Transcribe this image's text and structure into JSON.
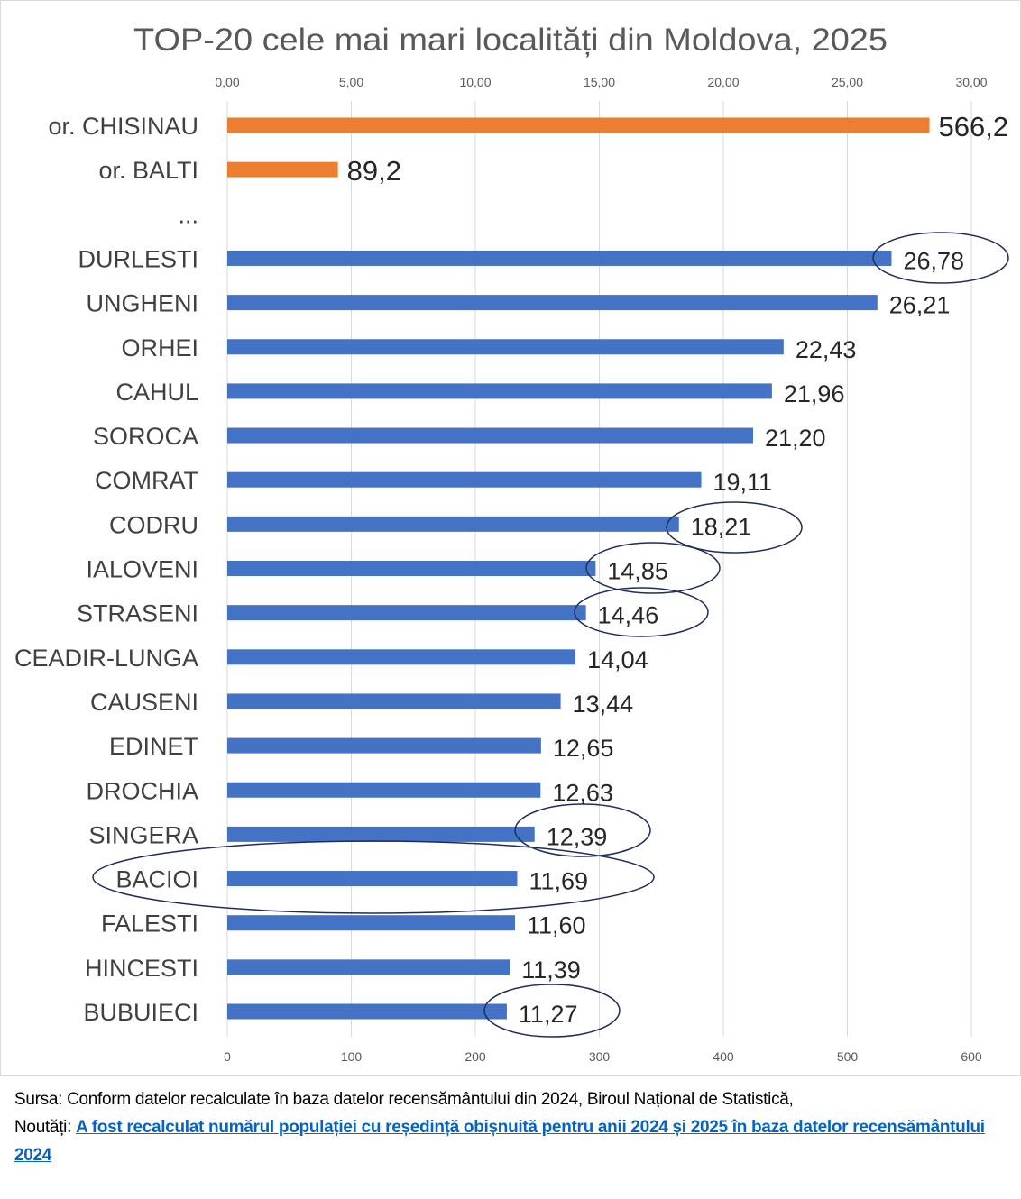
{
  "chart_data": {
    "type": "bar",
    "orientation": "horizontal",
    "title": "TOP-20 cele mai mari localități din Moldova, 2025",
    "top_axis": {
      "ticks": [
        "0,00",
        "5,00",
        "10,00",
        "15,00",
        "20,00",
        "25,00",
        "30,00"
      ],
      "range": [
        0,
        30
      ]
    },
    "bottom_axis": {
      "ticks": [
        "0",
        "100",
        "200",
        "300",
        "400",
        "500",
        "600"
      ],
      "range": [
        0,
        600
      ]
    },
    "grid": true,
    "colors": {
      "primary_axis_bars": "#4472c4",
      "secondary_axis_bars": "#ed7d31",
      "highlight_ellipse": "#1f2d5a"
    },
    "rows": [
      {
        "label": "or. CHISINAU",
        "value": 566.2,
        "value_label": "566,2",
        "axis": "bottom",
        "highlighted": false
      },
      {
        "label": "or. BALTI",
        "value": 89.2,
        "value_label": "89,2",
        "axis": "bottom",
        "highlighted": false
      },
      {
        "label": "...",
        "value": null,
        "value_label": null,
        "axis": "top",
        "highlighted": false
      },
      {
        "label": "DURLESTI",
        "value": 26.78,
        "value_label": "26,78",
        "axis": "top",
        "highlighted": true
      },
      {
        "label": "UNGHENI",
        "value": 26.21,
        "value_label": "26,21",
        "axis": "top",
        "highlighted": false
      },
      {
        "label": "ORHEI",
        "value": 22.43,
        "value_label": "22,43",
        "axis": "top",
        "highlighted": false
      },
      {
        "label": "CAHUL",
        "value": 21.96,
        "value_label": "21,96",
        "axis": "top",
        "highlighted": false
      },
      {
        "label": "SOROCA",
        "value": 21.2,
        "value_label": "21,20",
        "axis": "top",
        "highlighted": false
      },
      {
        "label": "COMRAT",
        "value": 19.11,
        "value_label": "19,11",
        "axis": "top",
        "highlighted": false
      },
      {
        "label": "CODRU",
        "value": 18.21,
        "value_label": "18,21",
        "axis": "top",
        "highlighted": true
      },
      {
        "label": "IALOVENI",
        "value": 14.85,
        "value_label": "14,85",
        "axis": "top",
        "highlighted": true
      },
      {
        "label": "STRASENI",
        "value": 14.46,
        "value_label": "14,46",
        "axis": "top",
        "highlighted": true
      },
      {
        "label": "CEADIR-LUNGA",
        "value": 14.04,
        "value_label": "14,04",
        "axis": "top",
        "highlighted": false
      },
      {
        "label": "CAUSENI",
        "value": 13.44,
        "value_label": "13,44",
        "axis": "top",
        "highlighted": false
      },
      {
        "label": "EDINET",
        "value": 12.65,
        "value_label": "12,65",
        "axis": "top",
        "highlighted": false
      },
      {
        "label": "DROCHIA",
        "value": 12.63,
        "value_label": "12,63",
        "axis": "top",
        "highlighted": false
      },
      {
        "label": "SINGERA",
        "value": 12.39,
        "value_label": "12,39",
        "axis": "top",
        "highlighted": true
      },
      {
        "label": "BACIOI",
        "value": 11.69,
        "value_label": "11,69",
        "axis": "top",
        "highlighted": true
      },
      {
        "label": "FALESTI",
        "value": 11.6,
        "value_label": "11,60",
        "axis": "top",
        "highlighted": false
      },
      {
        "label": "HINCESTI",
        "value": 11.39,
        "value_label": "11,39",
        "axis": "top",
        "highlighted": false
      },
      {
        "label": "BUBUIECI",
        "value": 11.27,
        "value_label": "11,27",
        "axis": "top",
        "highlighted": true
      }
    ]
  },
  "footer": {
    "source_text": "Sursa: Conform datelor recalculate în baza datelor recensământului din 2024, Biroul Național de Statistică,",
    "news_prefix": "Noutăți: ",
    "news_link": "A fost recalculat numărul populației cu reședință obișnuită pentru anii 2024 și 2025 în baza datelor recensământului 2024"
  }
}
